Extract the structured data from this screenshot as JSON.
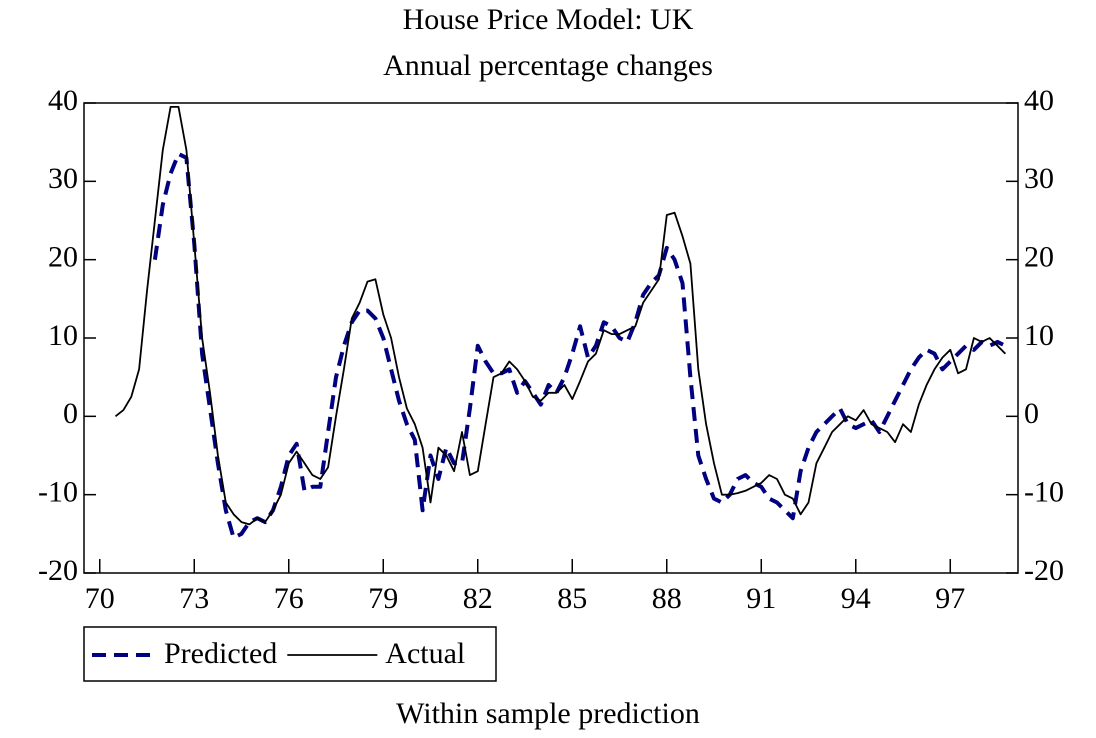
{
  "chart_data": {
    "type": "line",
    "title": "House Price Model: UK",
    "subtitle": "Annual percentage changes",
    "caption": "Within sample prediction",
    "x": [
      70.5,
      70.75,
      71,
      71.25,
      71.5,
      71.75,
      72,
      72.25,
      72.5,
      72.75,
      73,
      73.25,
      73.5,
      73.75,
      74,
      74.25,
      74.5,
      74.75,
      75,
      75.25,
      75.5,
      75.75,
      76,
      76.25,
      76.5,
      76.75,
      77,
      77.25,
      77.5,
      77.75,
      78,
      78.25,
      78.5,
      78.75,
      79,
      79.25,
      79.5,
      79.75,
      80,
      80.25,
      80.5,
      80.75,
      81,
      81.25,
      81.5,
      81.75,
      82,
      82.25,
      82.5,
      82.75,
      83,
      83.25,
      83.5,
      83.75,
      84,
      84.25,
      84.5,
      84.75,
      85,
      85.25,
      85.5,
      85.75,
      86,
      86.25,
      86.5,
      86.75,
      87,
      87.25,
      87.5,
      87.75,
      88,
      88.25,
      88.5,
      88.75,
      89,
      89.25,
      89.5,
      89.75,
      90,
      90.25,
      90.5,
      90.75,
      91,
      91.25,
      91.5,
      91.75,
      92,
      92.25,
      92.5,
      92.75,
      93,
      93.25,
      93.5,
      93.75,
      94,
      94.25,
      94.5,
      94.75,
      95,
      95.25,
      95.5,
      95.75,
      96,
      96.25,
      96.5,
      96.75,
      97,
      97.25,
      97.5,
      97.75,
      98,
      98.25,
      98.5,
      98.75
    ],
    "series": [
      {
        "name": "Predicted",
        "color": "#000080",
        "dash": true,
        "values": [
          null,
          null,
          null,
          null,
          null,
          20,
          27,
          31,
          33.5,
          33,
          22,
          8,
          1,
          -6,
          -12,
          -15.5,
          -15,
          -13.5,
          -13,
          -13.5,
          -12,
          -9,
          -5,
          -3.5,
          -9.5,
          -9,
          -9,
          -2,
          5,
          9,
          12,
          13.5,
          13.5,
          12.5,
          10,
          6,
          2,
          -1,
          -3,
          -12,
          -5,
          -8,
          -4,
          -6,
          -6,
          1,
          9,
          7,
          5.5,
          5.5,
          6,
          3,
          4.5,
          3,
          1.5,
          4,
          3,
          5,
          8,
          11.5,
          7.5,
          9,
          12,
          11.5,
          10,
          9.5,
          12,
          15.5,
          17,
          18,
          21.5,
          20,
          17,
          5,
          -5,
          -8,
          -10.5,
          -11,
          -10,
          -8,
          -7.5,
          -8.5,
          -9,
          -10.5,
          -11,
          -12,
          -13,
          -7,
          -4,
          -2,
          -1,
          0,
          1,
          -1,
          -1.5,
          -1,
          -0.5,
          -2,
          0,
          2,
          4,
          6,
          7.5,
          8.5,
          8,
          6,
          7,
          8,
          9,
          8.5,
          9.5,
          9,
          9.5,
          9
        ]
      },
      {
        "name": "Actual",
        "color": "#000000",
        "dash": false,
        "values": [
          0,
          0.8,
          2.5,
          6,
          16,
          25,
          34,
          39.5,
          39.5,
          34,
          22,
          10,
          3,
          -5,
          -11,
          -12.5,
          -13.5,
          -13.8,
          -13,
          -13.5,
          -12,
          -10,
          -6,
          -4.5,
          -6,
          -7.5,
          -8,
          -6.5,
          0,
          6,
          12.5,
          14.5,
          17.2,
          17.5,
          13,
          10,
          5,
          1,
          -1,
          -4,
          -11,
          -4,
          -5,
          -7,
          -2,
          -7.5,
          -7,
          -1,
          5,
          5.5,
          7,
          6,
          4.5,
          2.5,
          2,
          3,
          3,
          4,
          2.2,
          4.5,
          7,
          8,
          11,
          10.5,
          10.5,
          11,
          11.5,
          14.5,
          16,
          17.5,
          25.7,
          26,
          23,
          19.5,
          6,
          -1,
          -6,
          -10,
          -10,
          -9.8,
          -9.5,
          -9,
          -8.5,
          -7.5,
          -8,
          -10,
          -10.5,
          -12.5,
          -11,
          -6,
          -4,
          -2,
          -1,
          0,
          -0.5,
          0.8,
          -1,
          -1.5,
          -2,
          -3.3,
          -1,
          -2,
          1.5,
          4,
          6,
          7.5,
          8.5,
          5.5,
          6,
          10,
          9.5,
          10,
          9,
          8
        ]
      }
    ],
    "xlim": [
      69.5,
      99.15
    ],
    "xticks": [
      70,
      73,
      76,
      79,
      82,
      85,
      88,
      91,
      94,
      97
    ],
    "ylim": [
      -20,
      40
    ],
    "yticks": [
      -20,
      -10,
      0,
      10,
      20,
      30,
      40
    ]
  }
}
